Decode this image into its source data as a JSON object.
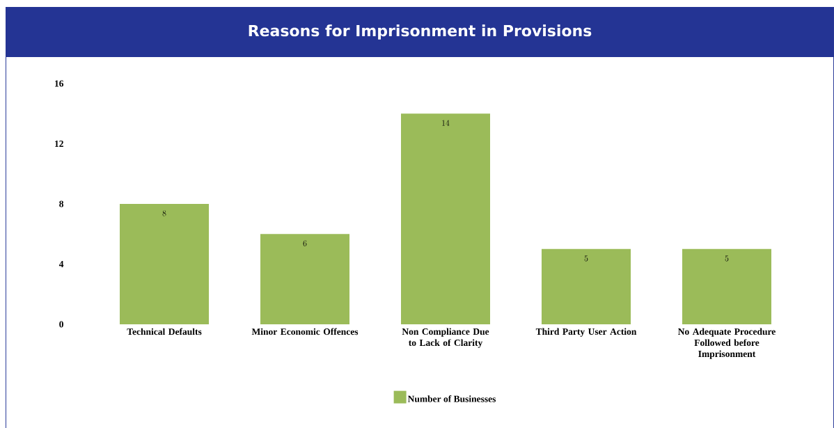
{
  "chart_data": {
    "type": "bar",
    "title": "Reasons for Imprisonment in Provisions",
    "categories": [
      "Technical Defaults",
      "Minor Economic Offences",
      "Non Compliance Due to Lack of Clarity",
      "Third Party User Action",
      "No Adequate Procedure Followed before Imprisonment"
    ],
    "series": [
      {
        "name": "Number of Businesses",
        "color": "#9bbb59",
        "values": [
          8,
          6,
          14,
          5,
          5
        ]
      }
    ],
    "ylim": [
      0,
      16
    ],
    "yticks": [
      0,
      4,
      8,
      12,
      16
    ],
    "grid": false,
    "legend": "bottom",
    "data_labels": true
  }
}
